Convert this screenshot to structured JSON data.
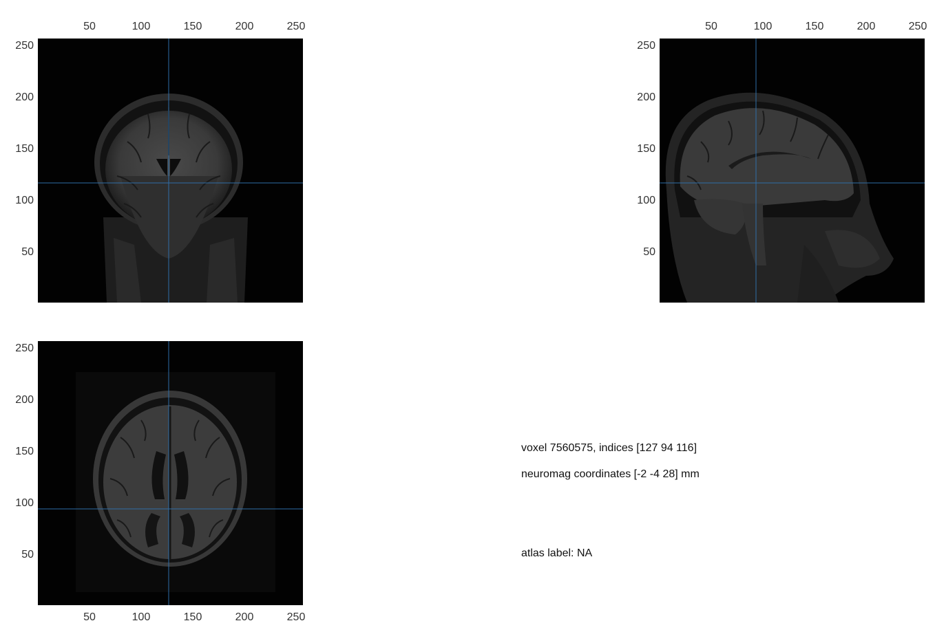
{
  "crosshair_color": "#2f6ea8",
  "axis_ticks": [
    "50",
    "100",
    "150",
    "200",
    "250"
  ],
  "views": {
    "coronal": {
      "name": "coronal-view"
    },
    "sagittal": {
      "name": "sagittal-view"
    },
    "axial": {
      "name": "axial-view"
    }
  },
  "info": {
    "voxel": "voxel 7560575, indices [127 94 116]",
    "coordinates": "neuromag coordinates [-2 -4 28] mm",
    "atlas": "atlas label: NA"
  }
}
